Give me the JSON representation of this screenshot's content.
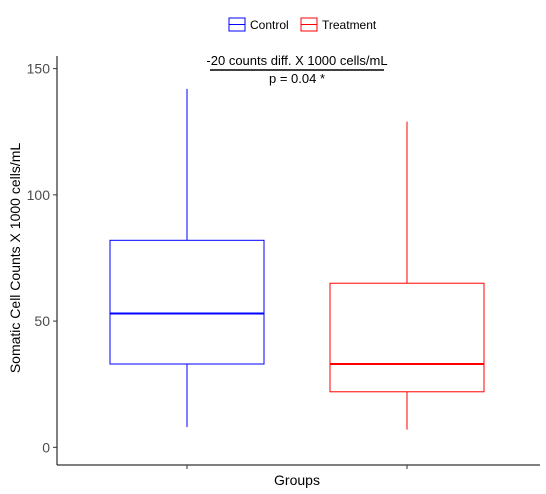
{
  "chart_data": {
    "type": "box",
    "xlabel": "Groups",
    "ylabel": "Somatic Cell Counts X 1000 cells/mL",
    "ylim": [
      -7,
      155
    ],
    "yticks": [
      0,
      50,
      100,
      150
    ],
    "grid": false,
    "legend": {
      "placement": "top",
      "entries": [
        "Control",
        "Treatment"
      ]
    },
    "annotation": {
      "line1": "-20 counts diff. X 1000 cells/mL",
      "line2": "p =  0.04 *"
    },
    "series": [
      {
        "name": "Control",
        "color": "#0000ff",
        "min": 8,
        "q1": 33,
        "median": 53,
        "q3": 82,
        "max": 142
      },
      {
        "name": "Treatment",
        "color": "#ff0000",
        "min": 7,
        "q1": 22,
        "median": 33,
        "q3": 65,
        "max": 129
      }
    ]
  }
}
